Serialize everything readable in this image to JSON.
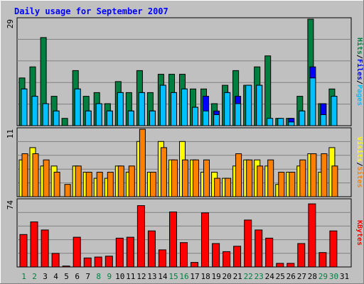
{
  "colors": {
    "background": "#c0c0c0",
    "plot_background": "#c0c0c0",
    "gridline": "#808080",
    "title": "#0000ff",
    "frame_dark": "#000000",
    "pages": "#00c0ff",
    "files": "#0000ff",
    "hits": "#008040",
    "visits": "#ffff00",
    "sites": "#ff8000",
    "kbytes": "#ff0000",
    "weekday_label": "#000000",
    "weekend_label": "#008040"
  },
  "chart_data": {
    "type": "bar",
    "title": "Daily usage for September 2007",
    "categories": [
      "1",
      "2",
      "3",
      "4",
      "5",
      "6",
      "7",
      "8",
      "9",
      "10",
      "11",
      "12",
      "13",
      "14",
      "15",
      "16",
      "17",
      "18",
      "19",
      "20",
      "21",
      "22",
      "23",
      "24",
      "25",
      "26",
      "27",
      "28",
      "29",
      "30",
      "31"
    ],
    "weekend_days": [
      "1",
      "2",
      "8",
      "9",
      "15",
      "16",
      "22",
      "23",
      "29",
      "30"
    ],
    "panels": [
      {
        "id": "top",
        "ymax_label": "29",
        "ylim": [
          0,
          29
        ],
        "axis_label_parts": [
          {
            "text": "Hits",
            "color_key": "hits"
          },
          {
            "text": "/",
            "color_key": "frame_dark"
          },
          {
            "text": "Files",
            "color_key": "files"
          },
          {
            "text": "/",
            "color_key": "frame_dark"
          },
          {
            "text": "Pages",
            "color_key": "pages"
          }
        ],
        "series": [
          {
            "name": "Hits",
            "color_key": "hits",
            "values": [
              13,
              16,
              24,
              8,
              2,
              15,
              8,
              9,
              6,
              12,
              9,
              15,
              9,
              14,
              14,
              14,
              10,
              10,
              6,
              11,
              15,
              11,
              16,
              19,
              2,
              2,
              8,
              29,
              6,
              10,
              null
            ]
          },
          {
            "name": "Files",
            "color_key": "files",
            "values": [
              10,
              8,
              6,
              4,
              0,
              10,
              4,
              6,
              4,
              9,
              4,
              9,
              4,
              11,
              9,
              10,
              5,
              8,
              4,
              9,
              8,
              11,
              11,
              0,
              0,
              2,
              4,
              16,
              6,
              8,
              null
            ]
          },
          {
            "name": "Pages",
            "color_key": "pages",
            "values": [
              10,
              8,
              6,
              4,
              0,
              10,
              4,
              6,
              4,
              9,
              4,
              9,
              4,
              11,
              9,
              10,
              5,
              4,
              3,
              9,
              6,
              11,
              11,
              2,
              2,
              1,
              4,
              13,
              3,
              8,
              null
            ]
          }
        ]
      },
      {
        "id": "middle",
        "ymax_label": "11",
        "ylim": [
          0,
          11
        ],
        "axis_label_parts": [
          {
            "text": "Visits",
            "color_key": "visits"
          },
          {
            "text": "/",
            "color_key": "frame_dark"
          },
          {
            "text": "Sites",
            "color_key": "sites"
          }
        ],
        "series": [
          {
            "name": "Visits",
            "color_key": "visits",
            "values": [
              6,
              8,
              5,
              5,
              0,
              5,
              4,
              3,
              3,
              5,
              4,
              9,
              4,
              9,
              6,
              9,
              6,
              4,
              4,
              3,
              5,
              6,
              6,
              5,
              2,
              4,
              5,
              7,
              4,
              8,
              null
            ]
          },
          {
            "name": "Sites",
            "color_key": "sites",
            "values": [
              7,
              7,
              6,
              4,
              2,
              5,
              4,
              4,
              4,
              5,
              5,
              11,
              4,
              8,
              6,
              6,
              6,
              6,
              3,
              3,
              7,
              6,
              5,
              6,
              4,
              4,
              6,
              7,
              7,
              5,
              null
            ]
          }
        ]
      },
      {
        "id": "bottom",
        "ymax_label": "74",
        "ylim": [
          0,
          74
        ],
        "axis_label_parts": [
          {
            "text": "KBytes",
            "color_key": "kbytes"
          }
        ],
        "series": [
          {
            "name": "KBytes",
            "color_key": "kbytes",
            "values": [
              36,
              50,
              41,
              15,
              1,
              33,
              10,
              11,
              12,
              32,
              33,
              68,
              40,
              19,
              61,
              27,
              5,
              60,
              26,
              17,
              23,
              52,
              41,
              32,
              4,
              4,
              26,
              70,
              16,
              40,
              null
            ]
          }
        ]
      }
    ]
  }
}
